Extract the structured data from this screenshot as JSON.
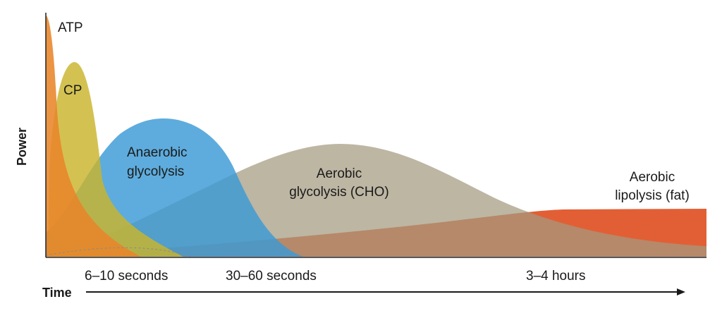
{
  "axes": {
    "y_label": "Power",
    "x_label": "Time"
  },
  "colors": {
    "atp": "#e8852a",
    "cp": "#c9b52c",
    "anaerobic": "#3a9ad6",
    "aerobic_cho": "#a39a7f",
    "aerobic_fat": "#e0562a"
  },
  "energy_systems": {
    "atp": "ATP",
    "cp": "CP",
    "anaerobic_line1": "Anaerobic",
    "anaerobic_line2": "glycolysis",
    "aerobic_cho_line1": "Aerobic",
    "aerobic_cho_line2": "glycolysis (CHO)",
    "aerobic_fat_line1": "Aerobic",
    "aerobic_fat_line2": "lipolysis (fat)"
  },
  "time_marks": {
    "mark1": "6–10 seconds",
    "mark2": "30–60 seconds",
    "mark3": "3–4 hours"
  }
}
